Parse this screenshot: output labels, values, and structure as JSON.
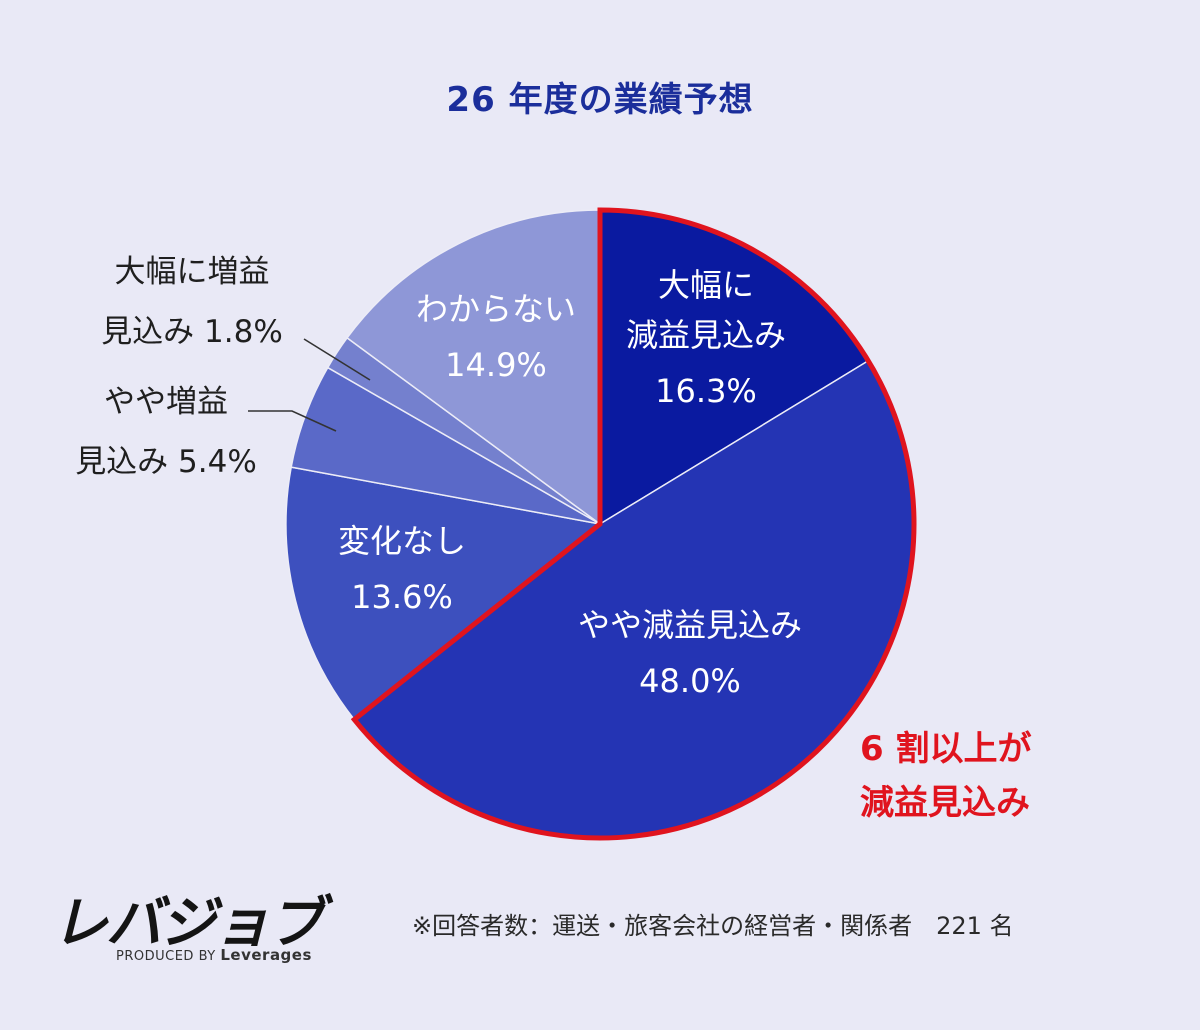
{
  "chart_data": {
    "type": "pie",
    "title": "26 年度の業績予想",
    "slices": [
      {
        "label": "大幅に減益見込み",
        "lines": [
          "大幅に",
          "減益見込み"
        ],
        "value": 16.3,
        "color": "#0A1AA0",
        "highlight": true
      },
      {
        "label": "やや減益見込み",
        "lines": [
          "やや減益見込み"
        ],
        "value": 48.0,
        "color": "#2434B4",
        "highlight": true
      },
      {
        "label": "変化なし",
        "lines": [
          "変化なし"
        ],
        "value": 13.6,
        "color": "#3D50BE"
      },
      {
        "label": "やや増益見込み",
        "lines": [
          "やや増益",
          "見込み"
        ],
        "value": 5.4,
        "color": "#5A69C8"
      },
      {
        "label": "大幅に増益見込み",
        "lines": [
          "大幅に増益",
          "見込み"
        ],
        "value": 1.8,
        "color": "#7480CE"
      },
      {
        "label": "わからない",
        "lines": [
          "わからない"
        ],
        "value": 14.9,
        "color": "#8E97D7"
      }
    ],
    "unit": "%",
    "highlight_color": "#E0141E"
  },
  "callout": {
    "line1": "6 割以上が",
    "line2": "減益見込み"
  },
  "brand": {
    "logo": "レバジョブ",
    "produced_by": "PRODUCED BY",
    "company": "Leverages"
  },
  "footnote": "※回答者数：運送・旅客会社の経営者・関係者　221 名"
}
